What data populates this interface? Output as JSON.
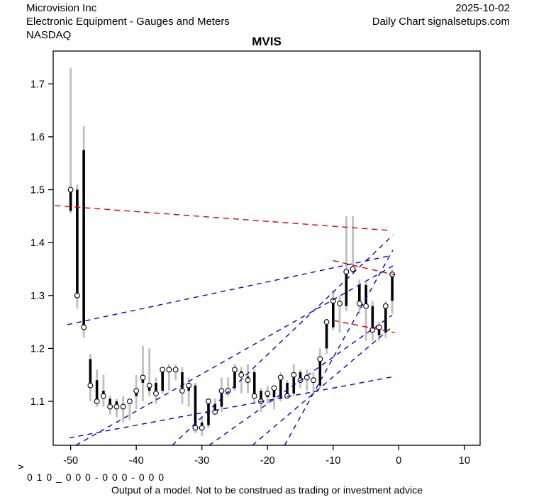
{
  "header": {
    "company": "Microvision Inc",
    "date": "2025-10-02",
    "sector": "Electronic Equipment - Gauges and Meters",
    "chart_info": "Daily Chart signalsetups.com",
    "exchange": "NASDAQ"
  },
  "footer": {
    "axis_label_v": "v",
    "model_code": "0 1 0 _ 0 0 0 - 0 0 0 - 0 0 0",
    "disclaimer": "Output of a model. Not to be construed as trading or investment advice"
  },
  "chart_data": {
    "type": "candlestick",
    "title": "MVIS",
    "xlabel": "",
    "ylabel": "",
    "grid": false,
    "legend": null,
    "xlim": [
      -52.66,
      12.39
    ],
    "ylim": [
      1.017,
      1.762
    ],
    "x_ticks": [
      -50,
      -40,
      -30,
      -20,
      -10,
      0,
      10
    ],
    "x_tick_labels": [
      "-50",
      "-40",
      "-30",
      "-20",
      "-10",
      "0",
      "10"
    ],
    "y_ticks": [
      1.1,
      1.2,
      1.3,
      1.4,
      1.5,
      1.6,
      1.7
    ],
    "y_tick_labels": [
      "1.1",
      "1.2",
      "1.3",
      "1.4",
      "1.5",
      "1.6",
      "1.7"
    ],
    "colors": {
      "wick": "#bfbfbf",
      "body": "#000000",
      "marker_fill": "#ffffff",
      "trend_red": "#dd0000",
      "trend_blue": "#0000cc",
      "axis": "#000000"
    },
    "bar_columns": [
      "day",
      "open",
      "high",
      "low",
      "close"
    ],
    "bars": [
      [
        -50,
        1.46,
        1.73,
        1.455,
        1.5
      ],
      [
        -49,
        1.5,
        1.51,
        1.275,
        1.3
      ],
      [
        -48,
        1.575,
        1.62,
        1.22,
        1.24
      ],
      [
        -47,
        1.18,
        1.19,
        1.1,
        1.13
      ],
      [
        -46,
        1.14,
        1.16,
        1.09,
        1.1
      ],
      [
        -45,
        1.12,
        1.15,
        1.09,
        1.11
      ],
      [
        -44,
        1.105,
        1.11,
        1.075,
        1.09
      ],
      [
        -43,
        1.1,
        1.105,
        1.07,
        1.09
      ],
      [
        -42,
        1.095,
        1.11,
        1.06,
        1.09
      ],
      [
        -41,
        1.095,
        1.105,
        1.065,
        1.1
      ],
      [
        -40,
        1.11,
        1.15,
        1.085,
        1.12
      ],
      [
        -39,
        1.135,
        1.205,
        1.1,
        1.145
      ],
      [
        -38,
        1.12,
        1.2,
        1.11,
        1.13
      ],
      [
        -37,
        1.135,
        1.145,
        1.095,
        1.115
      ],
      [
        -36,
        1.12,
        1.165,
        1.115,
        1.16
      ],
      [
        -35,
        1.155,
        1.17,
        1.12,
        1.16
      ],
      [
        -34,
        1.155,
        1.17,
        1.14,
        1.16
      ],
      [
        -33,
        1.155,
        1.165,
        1.095,
        1.12
      ],
      [
        -32,
        1.12,
        1.145,
        1.09,
        1.13
      ],
      [
        -31,
        1.13,
        1.135,
        1.04,
        1.05
      ],
      [
        -30,
        1.06,
        1.07,
        1.035,
        1.05
      ],
      [
        -29,
        1.055,
        1.105,
        1.05,
        1.1
      ],
      [
        -28,
        1.095,
        1.105,
        1.075,
        1.08
      ],
      [
        -27,
        1.09,
        1.145,
        1.08,
        1.12
      ],
      [
        -26,
        1.12,
        1.145,
        1.11,
        1.12
      ],
      [
        -25,
        1.125,
        1.17,
        1.12,
        1.16
      ],
      [
        -24,
        1.157,
        1.165,
        1.115,
        1.15
      ],
      [
        -23,
        1.147,
        1.17,
        1.115,
        1.14
      ],
      [
        -22,
        1.155,
        1.16,
        1.095,
        1.11
      ],
      [
        -21,
        1.12,
        1.125,
        1.08,
        1.1
      ],
      [
        -20,
        1.108,
        1.13,
        1.095,
        1.115
      ],
      [
        -19,
        1.108,
        1.13,
        1.085,
        1.125
      ],
      [
        -18,
        1.105,
        1.155,
        1.1,
        1.145
      ],
      [
        -17,
        1.135,
        1.14,
        1.105,
        1.11
      ],
      [
        -16,
        1.115,
        1.17,
        1.11,
        1.15
      ],
      [
        -15,
        1.155,
        1.16,
        1.125,
        1.14
      ],
      [
        -14,
        1.15,
        1.16,
        1.12,
        1.145
      ],
      [
        -13,
        1.14,
        1.155,
        1.115,
        1.14
      ],
      [
        -12,
        1.13,
        1.2,
        1.125,
        1.18
      ],
      [
        -11,
        1.2,
        1.255,
        1.19,
        1.25
      ],
      [
        -10,
        1.24,
        1.31,
        1.235,
        1.29
      ],
      [
        -9,
        1.29,
        1.3,
        1.23,
        1.285
      ],
      [
        -8,
        1.28,
        1.45,
        1.27,
        1.345
      ],
      [
        -7,
        1.345,
        1.45,
        1.34,
        1.35
      ],
      [
        -6,
        1.32,
        1.33,
        1.265,
        1.285
      ],
      [
        -5,
        1.32,
        1.325,
        1.215,
        1.28
      ],
      [
        -4,
        1.28,
        1.29,
        1.215,
        1.235
      ],
      [
        -3,
        1.225,
        1.25,
        1.215,
        1.24
      ],
      [
        -2,
        1.23,
        1.29,
        1.22,
        1.28
      ],
      [
        -1,
        1.29,
        1.35,
        1.265,
        1.34
      ]
    ],
    "trendlines": [
      {
        "color": "red",
        "from": [
          -52.4,
          1.47
        ],
        "to": [
          -1.4,
          1.423
        ]
      },
      {
        "color": "red",
        "from": [
          -10.0,
          1.366
        ],
        "to": [
          -0.6,
          1.339
        ]
      },
      {
        "color": "red",
        "from": [
          -10.0,
          1.253
        ],
        "to": [
          -0.6,
          1.23
        ]
      },
      {
        "color": "blue",
        "from": [
          -50.2,
          1.031
        ],
        "to": [
          -1.1,
          1.146
        ]
      },
      {
        "color": "blue",
        "from": [
          -50.5,
          1.245
        ],
        "to": [
          -1.4,
          1.375
        ]
      },
      {
        "color": "blue",
        "from": [
          -49.2,
          1.017
        ],
        "to": [
          -0.9,
          1.356
        ]
      },
      {
        "color": "blue",
        "from": [
          -34.5,
          1.017
        ],
        "to": [
          -0.9,
          1.414
        ]
      },
      {
        "color": "blue",
        "from": [
          -17.4,
          1.017
        ],
        "to": [
          -0.9,
          1.386
        ]
      },
      {
        "color": "blue",
        "from": [
          -22.3,
          1.017
        ],
        "to": [
          -1.1,
          1.24
        ]
      },
      {
        "color": "blue",
        "from": [
          -28.9,
          1.017
        ],
        "to": [
          -1.0,
          1.263
        ]
      }
    ]
  }
}
